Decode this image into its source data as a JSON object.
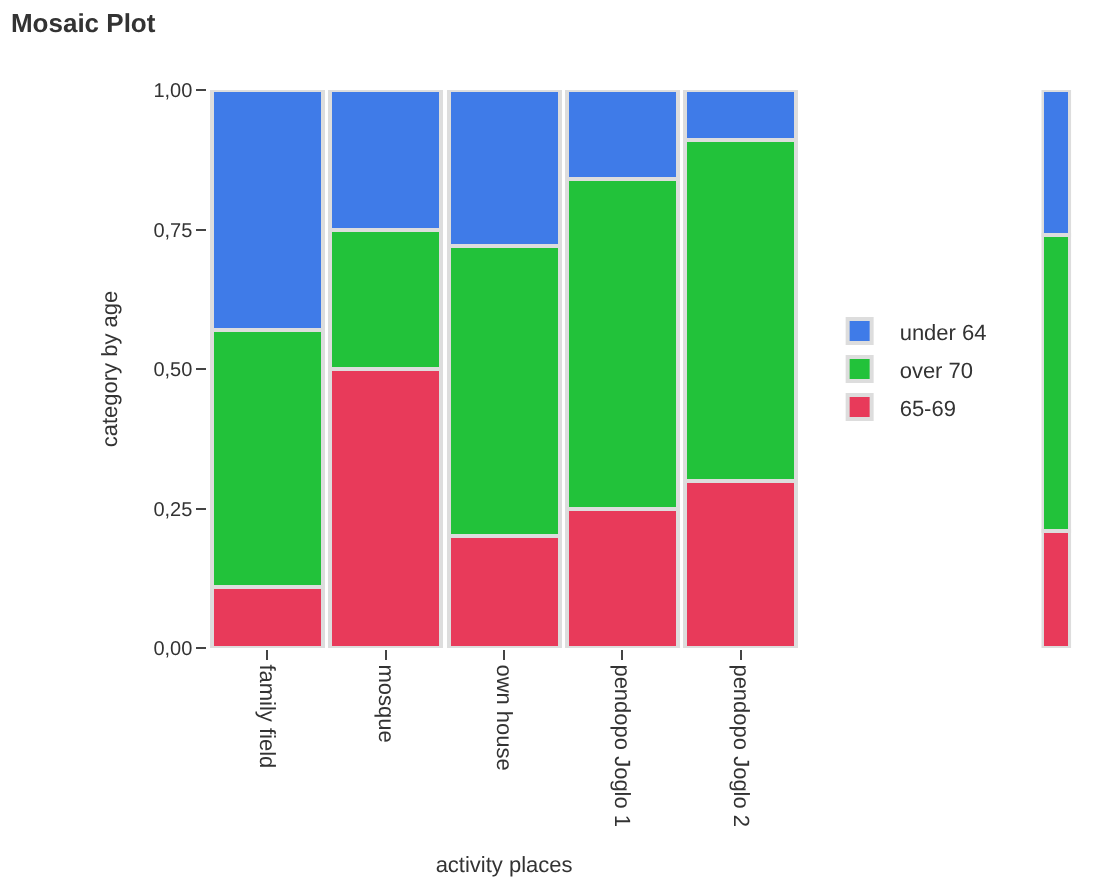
{
  "chart_data": [
    {
      "type": "bar",
      "stacked": true,
      "title": "Mosaic Plot",
      "xlabel": "activity places",
      "ylabel": "category by age",
      "categories": [
        "family field",
        "mosque",
        "own house",
        "pendopo Joglo 1",
        "pendopo Joglo 2"
      ],
      "series": [
        {
          "name": "65-69",
          "color": "#e83a5a",
          "values": [
            0.11,
            0.5,
            0.2,
            0.25,
            0.3
          ]
        },
        {
          "name": "over 70",
          "color": "#22c23a",
          "values": [
            0.46,
            0.25,
            0.52,
            0.59,
            0.61
          ]
        },
        {
          "name": "under 64",
          "color": "#3f7be8",
          "values": [
            0.43,
            0.25,
            0.28,
            0.16,
            0.09
          ]
        }
      ],
      "ylim": [
        0,
        1
      ],
      "yticks": [
        {
          "value": 0,
          "label": "0,00"
        },
        {
          "value": 0.25,
          "label": "0,25"
        },
        {
          "value": 0.5,
          "label": "0,50"
        },
        {
          "value": 0.75,
          "label": "0,75"
        },
        {
          "value": 1,
          "label": "1,00"
        }
      ],
      "legend": "right"
    },
    {
      "type": "bar",
      "stacked": true,
      "categories": [
        null
      ],
      "series": [
        {
          "color": "#e83a5a",
          "values": [
            0.21
          ]
        },
        {
          "color": "#22c23a",
          "values": [
            0.53
          ]
        },
        {
          "color": "#3f7be8",
          "values": [
            0.26
          ]
        }
      ],
      "ylim": [
        0,
        1
      ],
      "tick_labels": false
    }
  ]
}
